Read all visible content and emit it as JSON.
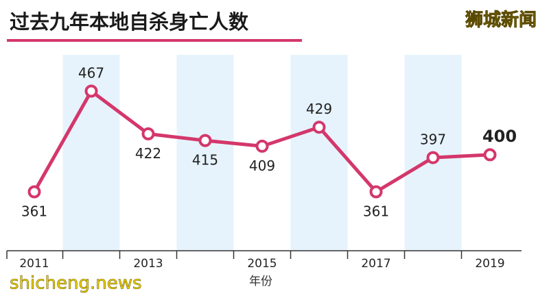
{
  "chart_data": {
    "type": "line",
    "title": "过去九年本地自杀身亡人数",
    "x_label": "年份",
    "categories": [
      "2011",
      null,
      "2013",
      null,
      "2015",
      null,
      "2017",
      null,
      "2019"
    ],
    "values": [
      361,
      467,
      422,
      415,
      409,
      429,
      361,
      397,
      400
    ],
    "color": "#d4376b",
    "source_logo": "狮城新闻",
    "website": "shicheng.news"
  }
}
